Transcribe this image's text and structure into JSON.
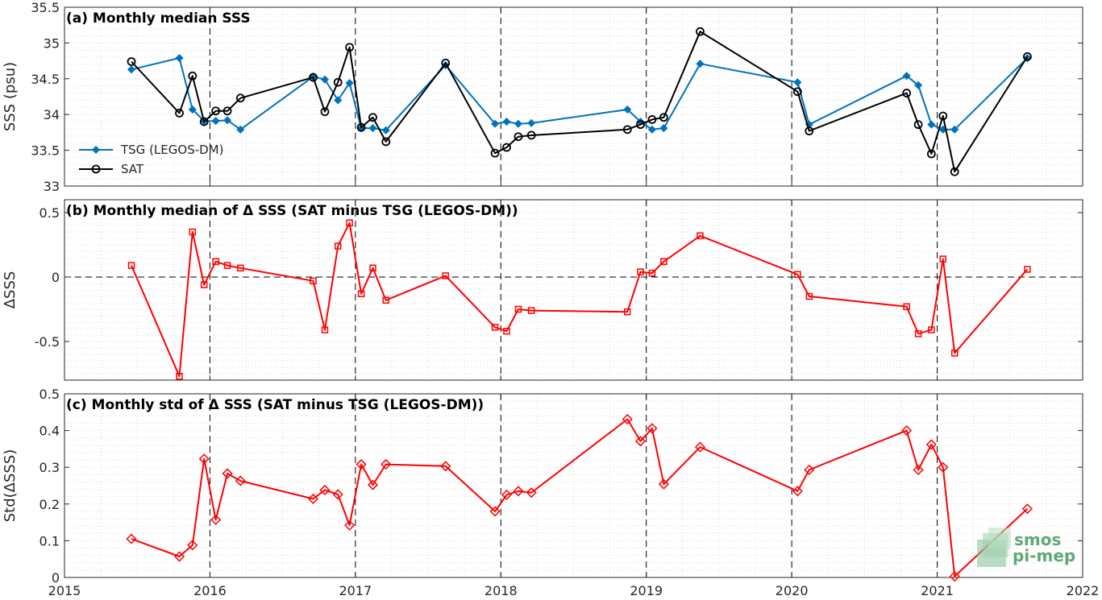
{
  "chart_data": [
    {
      "type": "line",
      "title": "(a) Monthly median SSS",
      "ylabel": "SSS (psu)",
      "xlim": [
        2015,
        2022
      ],
      "ylim": [
        33,
        35.5
      ],
      "yticks": [
        "33",
        "33.5",
        "34",
        "34.5",
        "35",
        "35.5"
      ],
      "yticks_values": [
        33,
        33.5,
        34,
        34.5,
        35,
        35.5
      ],
      "grid": "minor dotted",
      "legend": "left",
      "series": [
        {
          "name": "TSG (LEGOS-DM)",
          "color": "#0072BD",
          "marker": "diamond",
          "x": [
            2015.46,
            2015.79,
            2015.88,
            2015.96,
            2016.04,
            2016.12,
            2016.21,
            2016.71,
            2016.79,
            2016.88,
            2016.96,
            2017.04,
            2017.12,
            2017.21,
            2017.62,
            2017.96,
            2018.04,
            2018.12,
            2018.21,
            2018.87,
            2018.96,
            2019.04,
            2019.12,
            2019.37,
            2020.04,
            2020.12,
            2020.79,
            2020.87,
            2020.96,
            2021.04,
            2021.12,
            2021.62
          ],
          "y": [
            34.63,
            34.79,
            34.07,
            33.91,
            33.91,
            33.92,
            33.79,
            34.53,
            34.49,
            34.2,
            34.44,
            33.81,
            33.81,
            33.78,
            34.69,
            33.87,
            33.9,
            33.87,
            33.88,
            34.07,
            33.9,
            33.79,
            33.81,
            34.71,
            34.45,
            33.86,
            34.54,
            34.41,
            33.86,
            33.79,
            33.79,
            34.79
          ]
        },
        {
          "name": "SAT",
          "color": "#000000",
          "marker": "circle",
          "x": [
            2015.46,
            2015.79,
            2015.88,
            2015.96,
            2016.04,
            2016.12,
            2016.21,
            2016.71,
            2016.79,
            2016.88,
            2016.96,
            2017.04,
            2017.12,
            2017.21,
            2017.62,
            2017.96,
            2018.04,
            2018.12,
            2018.21,
            2018.87,
            2018.96,
            2019.04,
            2019.12,
            2019.37,
            2020.04,
            2020.12,
            2020.79,
            2020.87,
            2020.96,
            2021.04,
            2021.12,
            2021.62
          ],
          "y": [
            34.74,
            34.02,
            34.54,
            33.9,
            34.05,
            34.05,
            34.23,
            34.52,
            34.04,
            34.45,
            34.94,
            33.82,
            33.96,
            33.62,
            34.72,
            33.46,
            33.54,
            33.69,
            33.71,
            33.79,
            33.86,
            33.93,
            33.96,
            35.16,
            34.32,
            33.77,
            34.3,
            33.86,
            33.45,
            33.98,
            33.2,
            34.81
          ]
        }
      ]
    },
    {
      "type": "line",
      "title": "(b) Monthly median of Δ SSS (SAT minus TSG (LEGOS-DM))",
      "ylabel": "ΔSSS",
      "xlim": [
        2015,
        2022
      ],
      "ylim": [
        -0.8,
        0.6
      ],
      "yticks": [
        "-0.5",
        "0",
        "0.5"
      ],
      "yticks_values": [
        -0.5,
        0,
        0.5
      ],
      "reference_line": 0,
      "series": [
        {
          "name": "",
          "color": "#FF0000",
          "marker": "square",
          "x": [
            2015.46,
            2015.79,
            2015.88,
            2015.96,
            2016.04,
            2016.12,
            2016.21,
            2016.71,
            2016.79,
            2016.88,
            2016.96,
            2017.04,
            2017.12,
            2017.21,
            2017.62,
            2017.96,
            2018.04,
            2018.12,
            2018.21,
            2018.87,
            2018.96,
            2019.04,
            2019.12,
            2019.37,
            2020.04,
            2020.12,
            2020.79,
            2020.87,
            2020.96,
            2021.04,
            2021.12,
            2021.62
          ],
          "y": [
            0.09,
            -0.77,
            0.35,
            -0.06,
            0.12,
            0.09,
            0.07,
            -0.03,
            -0.41,
            0.24,
            0.42,
            -0.13,
            0.07,
            -0.18,
            0.01,
            -0.39,
            -0.42,
            -0.25,
            -0.26,
            -0.27,
            0.04,
            0.03,
            0.12,
            0.32,
            0.02,
            -0.15,
            -0.23,
            -0.44,
            -0.41,
            0.14,
            -0.59,
            0.06
          ]
        }
      ]
    },
    {
      "type": "line",
      "title": "(c) Monthly std of Δ SSS (SAT minus TSG (LEGOS-DM))",
      "ylabel": "Std(ΔSSS)",
      "xlim": [
        2015,
        2022
      ],
      "ylim": [
        0,
        0.5
      ],
      "xticks": [
        "2015",
        "2016",
        "2017",
        "2018",
        "2019",
        "2020",
        "2021",
        "2022"
      ],
      "xticks_values": [
        2015,
        2016,
        2017,
        2018,
        2019,
        2020,
        2021,
        2022
      ],
      "yticks": [
        "0",
        "0.1",
        "0.2",
        "0.3",
        "0.4",
        "0.5"
      ],
      "yticks_values": [
        0,
        0.1,
        0.2,
        0.3,
        0.4,
        0.5
      ],
      "series": [
        {
          "name": "",
          "color": "#FF0000",
          "marker": "diamond",
          "x": [
            2015.46,
            2015.79,
            2015.88,
            2015.96,
            2016.04,
            2016.12,
            2016.21,
            2016.71,
            2016.79,
            2016.88,
            2016.96,
            2017.04,
            2017.12,
            2017.21,
            2017.62,
            2017.96,
            2018.04,
            2018.12,
            2018.21,
            2018.87,
            2018.96,
            2019.04,
            2019.12,
            2019.37,
            2020.04,
            2020.12,
            2020.79,
            2020.87,
            2020.96,
            2021.04,
            2021.12,
            2021.62
          ],
          "y": [
            0.105,
            0.057,
            0.088,
            0.323,
            0.157,
            0.283,
            0.263,
            0.214,
            0.238,
            0.226,
            0.142,
            0.308,
            0.252,
            0.308,
            0.303,
            0.18,
            0.225,
            0.235,
            0.231,
            0.431,
            0.371,
            0.406,
            0.254,
            0.355,
            0.235,
            0.293,
            0.4,
            0.293,
            0.362,
            0.3,
            0.003,
            0.187
          ]
        }
      ]
    }
  ],
  "logo": {
    "line1": "smos",
    "line2": "pi-mep",
    "color": "#5fa878"
  }
}
